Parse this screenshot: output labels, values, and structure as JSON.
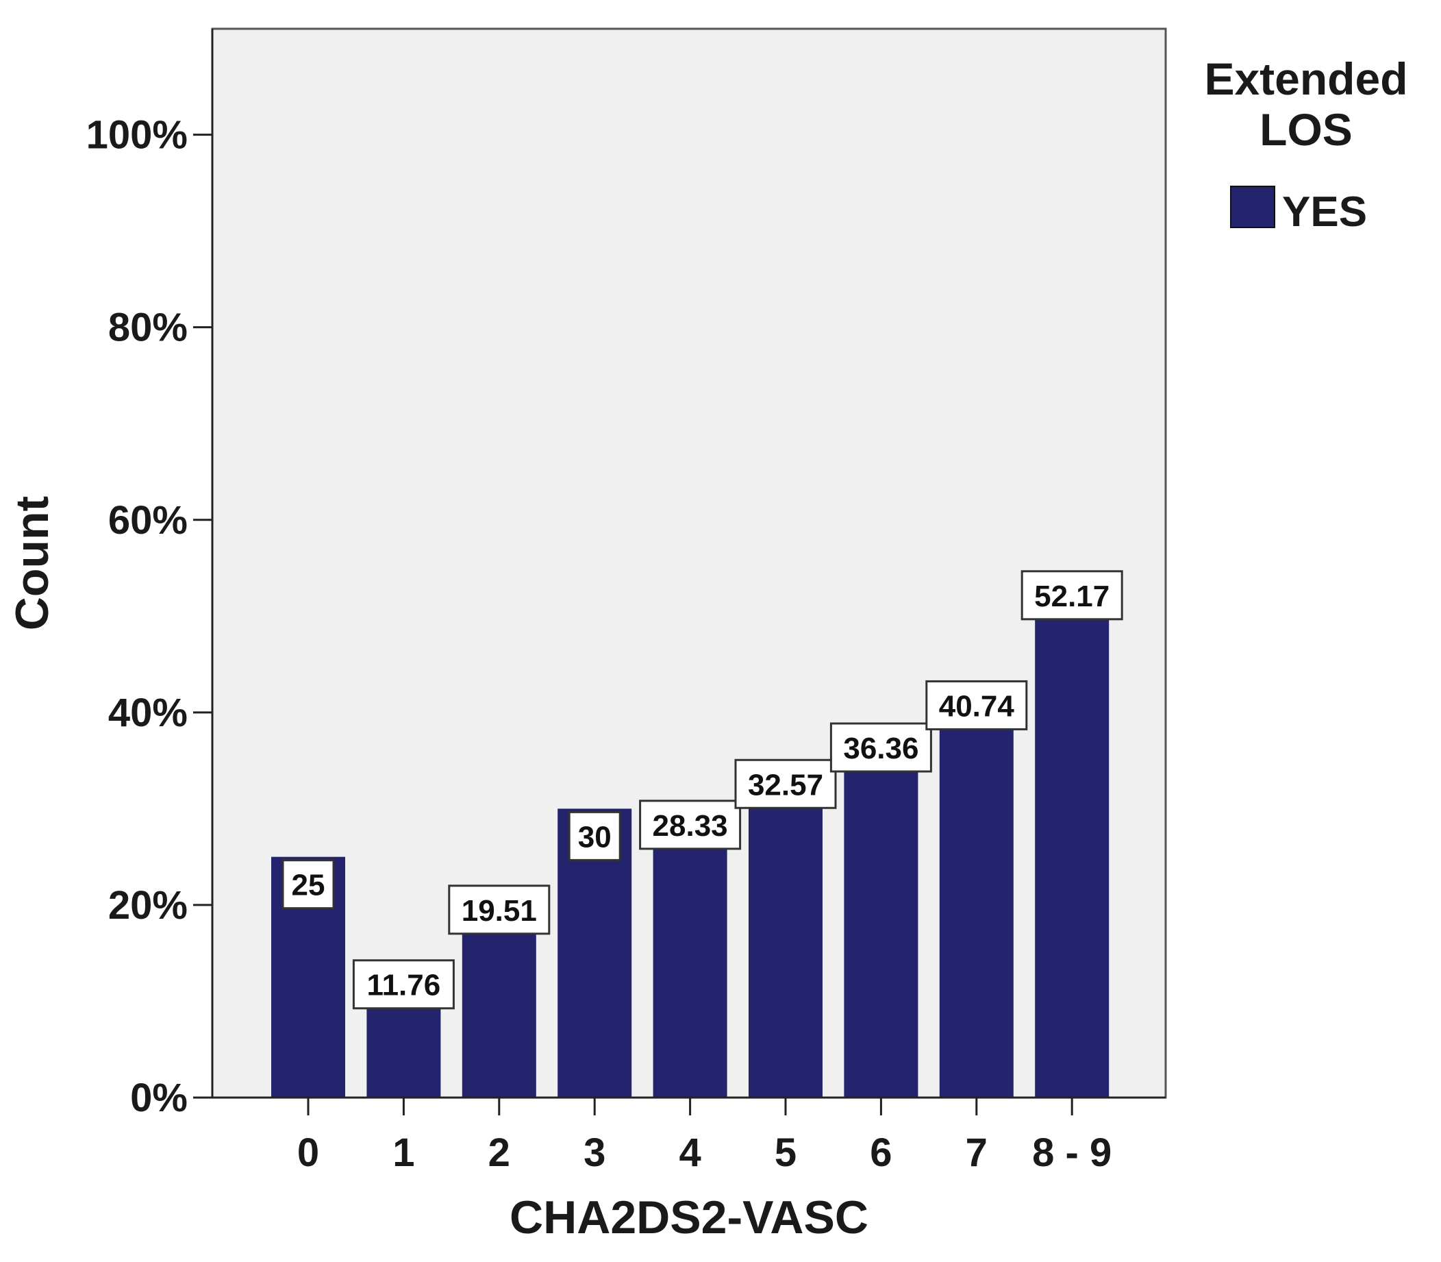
{
  "chart_data": {
    "type": "bar",
    "categories": [
      "0",
      "1",
      "2",
      "3",
      "4",
      "5",
      "6",
      "7",
      "8 - 9"
    ],
    "series": [
      {
        "name": "YES",
        "values": [
          25,
          11.76,
          19.51,
          30,
          28.33,
          32.57,
          36.36,
          40.74,
          52.17
        ],
        "data_labels": [
          "25",
          "11.76",
          "19.51",
          "30",
          "28.33",
          "32.57",
          "36.36",
          "40.74",
          "52.17"
        ],
        "color": "#23236e"
      }
    ],
    "xlabel": "CHA2DS2-VASC",
    "ylabel": "Count",
    "ylim": [
      0,
      111
    ],
    "yticks": [
      0,
      20,
      40,
      60,
      80,
      100
    ],
    "ytick_labels": [
      "0%",
      "20%",
      "40%",
      "60%",
      "80%",
      "100%"
    ],
    "legend": {
      "title_line1": "Extended",
      "title_line2": "LOS",
      "placement": "right"
    },
    "plot_background": "#f0f0f0",
    "grid": false
  }
}
